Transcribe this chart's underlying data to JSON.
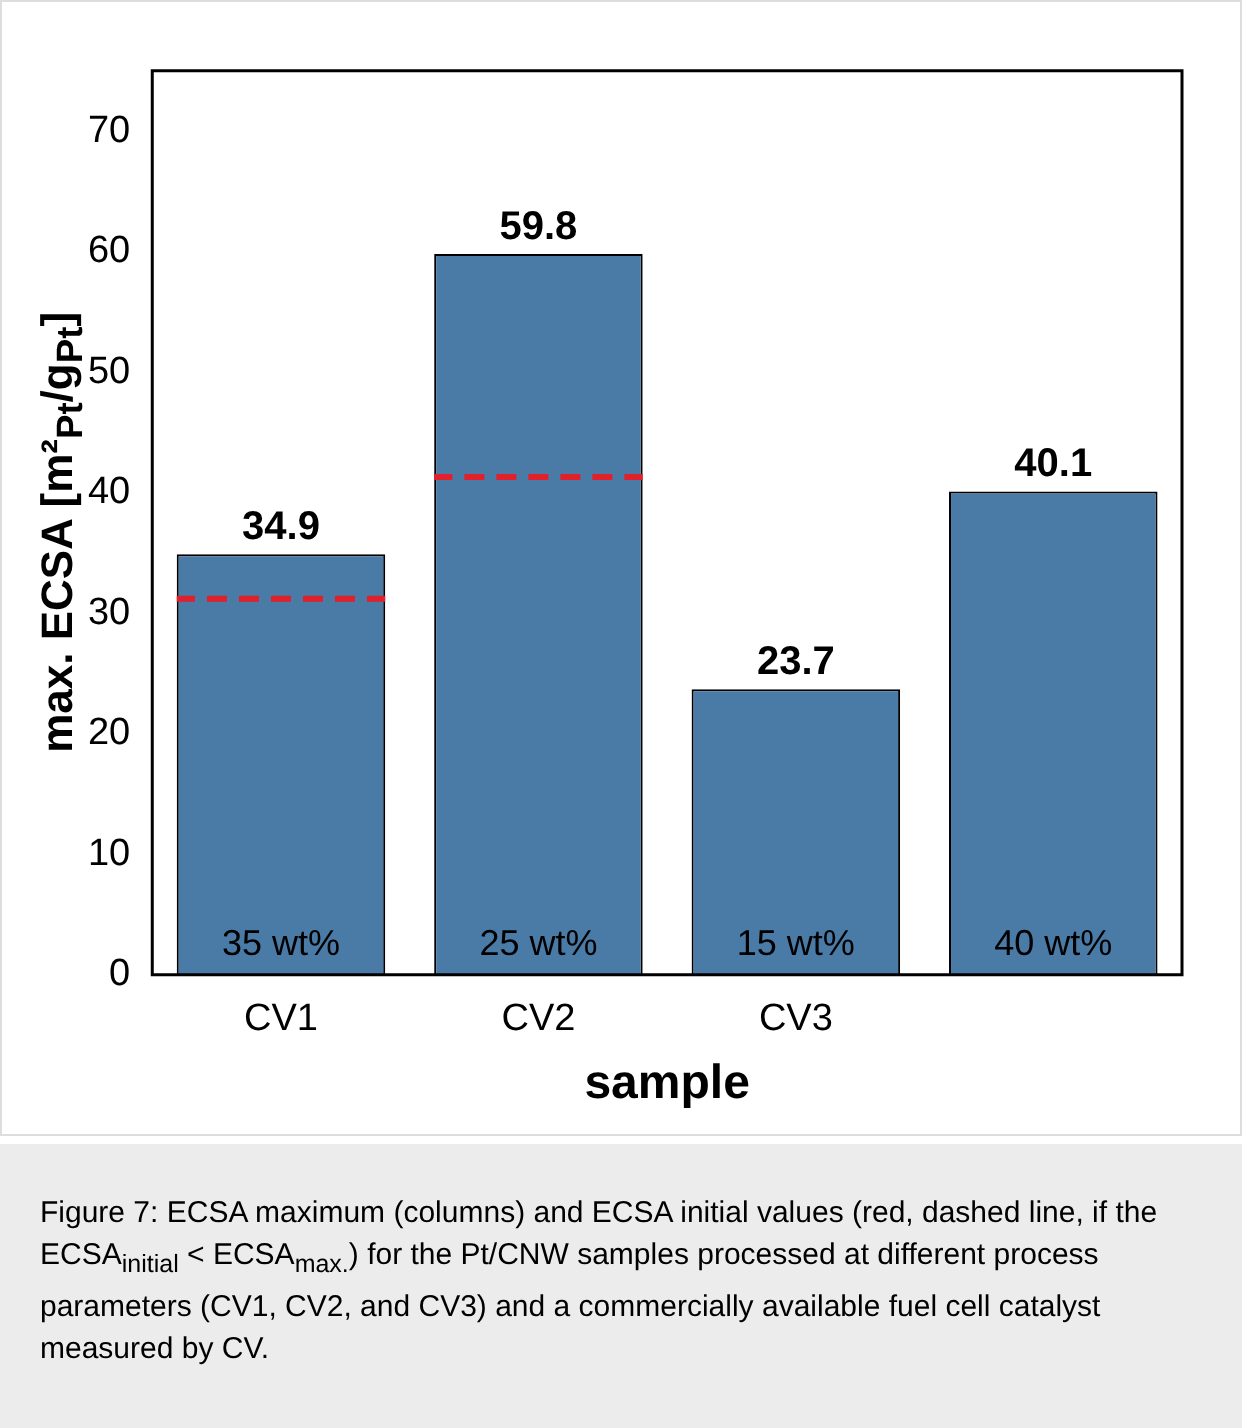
{
  "chart_data": {
    "type": "bar",
    "xlabel": "sample",
    "ylabel": "max. ECSA [m²$_{Pt}$/g$_{Pt}$]",
    "categories": [
      "CV1",
      "CV2",
      "CV3",
      null
    ],
    "series": [
      {
        "color": "#4a7aa6",
        "values": [
          34.9,
          59.8,
          23.7,
          40.1
        ],
        "value_labels": [
          "34.9",
          "59.8",
          "23.7",
          "40.1"
        ]
      }
    ],
    "ref_lines": [
      {
        "axis": "y",
        "value": 31.2,
        "color": "#e0202a",
        "line_style": "dashed"
      },
      {
        "axis": "y",
        "value": 41.3,
        "color": "#e0202a",
        "line_style": "dashed"
      }
    ],
    "ylim": [
      0,
      75
    ],
    "yticks": [
      0,
      10,
      20,
      30,
      40,
      50,
      60,
      70
    ],
    "grid": false,
    "legend": false,
    "annotations": [
      "35 wt%",
      "25 wt%",
      "15 wt%",
      "40 wt%",
      "Figure 7: ECSA maximum (columns) and ECSA initial values (red, dashed line, if the ECSA$_{initial}$ < ECSA$_{max.}$) for the Pt/CNW samples processed at different process parameters (CV1, CV2, and CV3) and a commercially available fuel cell catalyst measured by CV."
    ]
  }
}
